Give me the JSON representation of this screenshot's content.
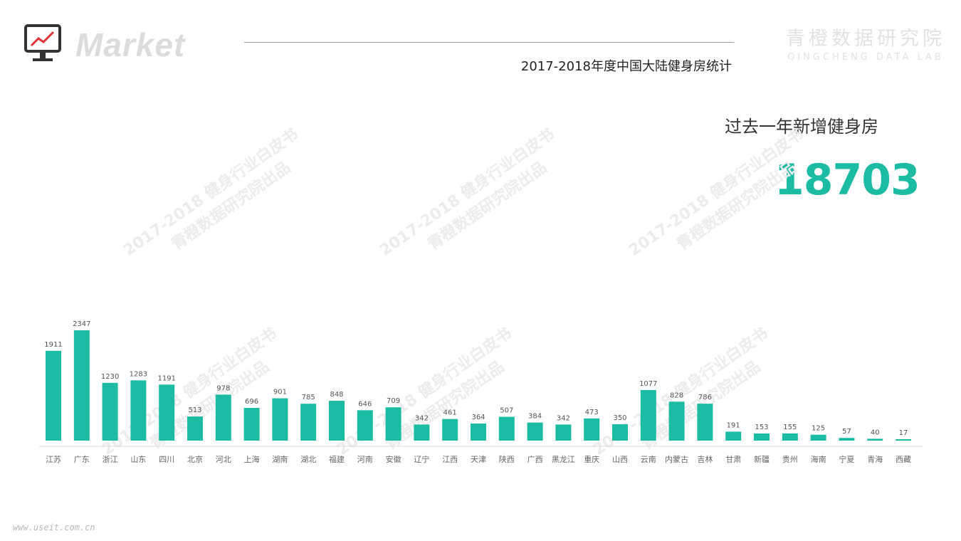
{
  "header": {
    "brand_word": "Market",
    "title": "2017-2018年度中国大陆健身房统计",
    "lab_name_cn": "青橙数据研究院",
    "lab_name_en": "QINGCHENG DATA LAB"
  },
  "stat": {
    "label": "过去一年新增健身房",
    "value": "18703"
  },
  "watermark": {
    "line1": "2017-2018 健身行业白皮书",
    "line2": "青橙数据研究院出品"
  },
  "footer": {
    "site": "www.useit.com.cn"
  },
  "colors": {
    "bar": "#1cbca4",
    "accent_text": "#1cbca4",
    "monitor_icon": "#333333",
    "monitor_line": "#e0333a"
  },
  "icons": {
    "brand": "monitor-chart-icon"
  },
  "chart_data": {
    "type": "bar",
    "categories": [
      "江苏",
      "广东",
      "浙江",
      "山东",
      "四川",
      "北京",
      "河北",
      "上海",
      "湖南",
      "湖北",
      "福建",
      "河南",
      "安徽",
      "辽宁",
      "江西",
      "天津",
      "陕西",
      "广西",
      "黑龙江",
      "重庆",
      "山西",
      "云南",
      "内蒙古",
      "吉林",
      "甘肃",
      "新疆",
      "贵州",
      "海南",
      "宁夏",
      "青海",
      "西藏"
    ],
    "values": [
      1911,
      2347,
      1230,
      1283,
      1191,
      513,
      978,
      696,
      901,
      785,
      848,
      646,
      709,
      342,
      461,
      364,
      507,
      384,
      342,
      473,
      350,
      1077,
      828,
      786,
      191,
      153,
      155,
      125,
      57,
      40,
      17
    ],
    "title": "",
    "xlabel": "",
    "ylabel": "",
    "ylim": [
      0,
      2347
    ],
    "grid": false,
    "legend": "none"
  }
}
